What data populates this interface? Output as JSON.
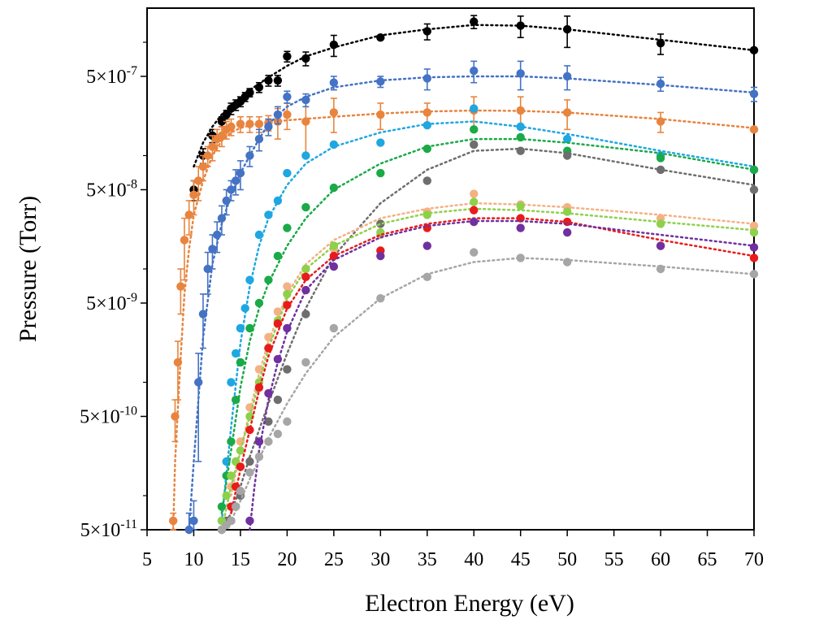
{
  "chart_data": {
    "type": "scatter",
    "title": "",
    "xlabel": "Electron Energy (eV)",
    "ylabel": "Pressure (Torr)",
    "xlim": [
      5,
      70
    ],
    "ylim": [
      5e-11,
      2e-06
    ],
    "yscale": "log",
    "grid": false,
    "legend": "none",
    "x_ticks": [
      5,
      10,
      15,
      20,
      25,
      30,
      35,
      40,
      45,
      50,
      55,
      60,
      65,
      70
    ],
    "y_ticks": [
      {
        "value": 5e-11,
        "label": "5×10",
        "exp": "-11"
      },
      {
        "value": 5e-10,
        "label": "5×10",
        "exp": "-10"
      },
      {
        "value": 5e-09,
        "label": "5×10",
        "exp": "-9"
      },
      {
        "value": 5e-08,
        "label": "5×10",
        "exp": "-8"
      },
      {
        "value": 5e-07,
        "label": "5×10",
        "exp": "-7"
      }
    ],
    "series": [
      {
        "color": "#000000",
        "x": [
          10,
          11,
          12,
          13,
          13.5,
          14,
          14.5,
          15,
          15.5,
          16,
          17,
          18,
          19,
          20,
          22,
          25,
          30,
          35,
          40,
          45,
          50,
          60,
          70
        ],
        "y": [
          5e-08,
          1e-07,
          1.5e-07,
          2e-07,
          2.3e-07,
          2.6e-07,
          2.8e-07,
          3e-07,
          3.3e-07,
          3.6e-07,
          4e-07,
          4.6e-07,
          4.6e-07,
          7.5e-07,
          7.2e-07,
          9.5e-07,
          1.1e-06,
          1.25e-06,
          1.52e-06,
          1.4e-06,
          1.3e-06,
          9.8e-07,
          8.5e-07
        ],
        "err": [
          1e-08,
          1.5e-08,
          2e-08,
          2e-08,
          2e-08,
          3e-08,
          3e-08,
          3e-08,
          3e-08,
          3e-08,
          4e-08,
          5e-08,
          5e-08,
          8e-08,
          1e-07,
          2e-07,
          0,
          2e-07,
          2e-07,
          3e-07,
          4e-07,
          2e-07,
          0
        ],
        "fit_x": [
          10,
          11,
          12,
          13,
          14,
          15,
          16,
          17,
          18,
          19,
          20,
          22,
          25,
          30,
          35,
          40,
          45,
          50,
          60,
          70
        ],
        "fit_y": [
          8e-08,
          1.3e-07,
          1.8e-07,
          2.3e-07,
          2.8e-07,
          3.3e-07,
          3.8e-07,
          4.3e-07,
          4.9e-07,
          5.5e-07,
          6.2e-07,
          7.5e-07,
          9e-07,
          1.15e-06,
          1.3e-06,
          1.42e-06,
          1.4e-06,
          1.3e-06,
          1.05e-06,
          8.5e-07
        ]
      },
      {
        "color": "#e8843e",
        "x": [
          7.8,
          8,
          8.3,
          8.6,
          9,
          9.5,
          10,
          10.5,
          11,
          11.5,
          12,
          12.5,
          13,
          13.5,
          14,
          15,
          16,
          17,
          18,
          19,
          20,
          22,
          25,
          30,
          35,
          40,
          45,
          50,
          60,
          70
        ],
        "y": [
          6e-11,
          5e-10,
          1.5e-09,
          7e-09,
          1.8e-08,
          3e-08,
          4.5e-08,
          6e-08,
          8e-08,
          1e-07,
          1.2e-07,
          1.4e-07,
          1.5e-07,
          1.7e-07,
          1.8e-07,
          1.9e-07,
          1.9e-07,
          1.9e-07,
          1.95e-07,
          2e-07,
          2.3e-07,
          2e-07,
          2.4e-07,
          2.3e-07,
          2.4e-07,
          2.5e-07,
          2.5e-07,
          2.4e-07,
          2e-07,
          1.7e-07
        ],
        "err": [
          1e-11,
          2e-10,
          8e-10,
          3e-09,
          1e-08,
          1e-08,
          1.5e-08,
          2e-08,
          2e-08,
          2e-08,
          3e-08,
          3e-08,
          3e-08,
          3e-08,
          3e-08,
          3e-08,
          3e-08,
          3e-08,
          3e-08,
          6e-08,
          6e-08,
          1e-07,
          8e-08,
          6e-08,
          5e-08,
          8e-08,
          8e-08,
          7e-08,
          4e-08,
          0
        ],
        "fit_x": [
          7.8,
          8,
          8.5,
          9,
          9.5,
          10,
          11,
          12,
          13,
          14,
          15,
          16,
          18,
          20,
          25,
          30,
          35,
          40,
          45,
          50,
          60,
          70
        ],
        "fit_y": [
          5e-11,
          2e-10,
          1.2e-09,
          6e-09,
          1.5e-08,
          3e-08,
          6e-08,
          1e-07,
          1.35e-07,
          1.6e-07,
          1.75e-07,
          1.85e-07,
          1.95e-07,
          2.05e-07,
          2.2e-07,
          2.35e-07,
          2.45e-07,
          2.5e-07,
          2.48e-07,
          2.4e-07,
          2.1e-07,
          1.75e-07
        ]
      },
      {
        "color": "#4472c4",
        "x": [
          9.5,
          10,
          10.5,
          11,
          11.5,
          12,
          12.5,
          13,
          13.5,
          14,
          14.5,
          15,
          16,
          17,
          18,
          19,
          20,
          22,
          25,
          30,
          35,
          40,
          45,
          50,
          60,
          70
        ],
        "y": [
          5e-11,
          6e-11,
          1e-09,
          4e-09,
          1e-08,
          1.5e-08,
          2e-08,
          2.8e-08,
          4e-08,
          5e-08,
          6e-08,
          7e-08,
          1e-07,
          1.4e-07,
          1.8e-07,
          2.3e-07,
          3.3e-07,
          3.1e-07,
          4.4e-07,
          4.5e-07,
          4.8e-07,
          5.6e-07,
          5.3e-07,
          5e-07,
          4.3e-07,
          3.5e-07
        ],
        "err": [
          2e-11,
          3e-11,
          8e-10,
          2e-09,
          4e-09,
          5e-09,
          6e-09,
          8e-09,
          1e-08,
          1e-08,
          1.5e-08,
          2e-08,
          2e-08,
          3e-08,
          3e-08,
          4e-08,
          4e-08,
          4e-08,
          6e-08,
          5e-08,
          1e-07,
          1.2e-07,
          1.5e-07,
          1.2e-07,
          6e-08,
          5e-08
        ],
        "fit_x": [
          9.5,
          10,
          11,
          12,
          13,
          14,
          15,
          16,
          17,
          18,
          20,
          22,
          25,
          30,
          35,
          40,
          45,
          50,
          60,
          70
        ],
        "fit_y": [
          5e-11,
          2e-10,
          2.5e-09,
          1.1e-08,
          2.5e-08,
          4.5e-08,
          7e-08,
          1e-07,
          1.4e-07,
          1.9e-07,
          2.7e-07,
          3.3e-07,
          4e-07,
          4.6e-07,
          4.9e-07,
          5e-07,
          5e-07,
          4.8e-07,
          4.2e-07,
          3.6e-07
        ]
      },
      {
        "color": "#1ea7e1",
        "x": [
          13,
          13.5,
          14,
          14.5,
          15,
          15.5,
          16,
          17,
          18,
          19,
          20,
          22,
          25,
          30,
          35,
          40,
          45,
          50,
          60,
          70
        ],
        "y": [
          6e-11,
          2e-10,
          1e-09,
          1.8e-09,
          3e-09,
          4.5e-09,
          8e-09,
          2e-08,
          3e-08,
          4e-08,
          7e-08,
          1e-07,
          1.25e-07,
          1.3e-07,
          1.85e-07,
          2.6e-07,
          1.8e-07,
          1.4e-07,
          1e-07,
          7.5e-08
        ],
        "err": [
          0,
          0,
          0,
          0,
          0,
          0,
          0,
          0,
          0,
          0,
          0,
          0,
          0,
          0,
          0,
          0,
          0,
          0,
          0,
          0
        ],
        "fit_x": [
          13,
          14,
          15,
          16,
          17,
          18,
          20,
          22,
          25,
          30,
          35,
          40,
          45,
          50,
          60,
          70
        ],
        "fit_y": [
          6e-11,
          4e-10,
          2.2e-09,
          7e-09,
          1.6e-08,
          2.8e-08,
          5.5e-08,
          8.5e-08,
          1.2e-07,
          1.6e-07,
          1.9e-07,
          2e-07,
          1.8e-07,
          1.55e-07,
          1.1e-07,
          8e-08
        ]
      },
      {
        "color": "#1aaa47",
        "x": [
          13,
          13.5,
          14,
          14.5,
          15,
          16,
          17,
          18,
          19,
          20,
          22,
          25,
          30,
          35,
          40,
          45,
          50,
          60,
          70
        ],
        "y": [
          8e-11,
          1.5e-10,
          3e-10,
          7e-10,
          1.5e-09,
          3e-09,
          5e-09,
          8e-09,
          1.3e-08,
          2.3e-08,
          3.5e-08,
          5.2e-08,
          7e-08,
          1.15e-07,
          1.7e-07,
          1.45e-07,
          1.1e-07,
          9.5e-08,
          7.5e-08
        ],
        "err": [
          0,
          0,
          0,
          0,
          0,
          0,
          0,
          0,
          0,
          0,
          0,
          0,
          0,
          0,
          0,
          0,
          0,
          0,
          0
        ],
        "fit_x": [
          13,
          14,
          15,
          16,
          17,
          18,
          20,
          22,
          25,
          30,
          35,
          40,
          45,
          50,
          60,
          70
        ],
        "fit_y": [
          7e-11,
          2.5e-10,
          9e-10,
          2.3e-09,
          4.5e-09,
          7.5e-09,
          1.6e-08,
          2.8e-08,
          5e-08,
          8.5e-08,
          1.2e-07,
          1.4e-07,
          1.4e-07,
          1.3e-07,
          1.05e-07,
          7.5e-08
        ]
      },
      {
        "color": "#6e6e6e",
        "x": [
          13,
          13.5,
          14,
          14.5,
          15,
          16,
          17,
          18,
          19,
          20,
          22,
          25,
          30,
          35,
          40,
          45,
          50,
          60,
          70
        ],
        "y": [
          5e-11,
          6e-11,
          6e-11,
          8e-11,
          1e-10,
          2e-10,
          3e-10,
          4.5e-10,
          7e-10,
          1.3e-09,
          4e-09,
          1.6e-08,
          2.5e-08,
          6e-08,
          1.25e-07,
          1.1e-07,
          1e-07,
          7.5e-08,
          5e-08
        ],
        "err": [
          0,
          0,
          0,
          0,
          0,
          0,
          0,
          0,
          0,
          0,
          0,
          0,
          0,
          0,
          0,
          0,
          0,
          0,
          0
        ],
        "fit_x": [
          13,
          14,
          15,
          16,
          17,
          18,
          20,
          22,
          25,
          30,
          35,
          40,
          45,
          50,
          60,
          70
        ],
        "fit_y": [
          4e-11,
          7e-11,
          1.2e-10,
          2.2e-10,
          3.8e-10,
          6.5e-10,
          1.8e-09,
          4.5e-09,
          1.3e-08,
          3.8e-08,
          7.5e-08,
          1.1e-07,
          1.15e-07,
          1.05e-07,
          7.5e-08,
          5.5e-08
        ]
      },
      {
        "color": "#f5b183",
        "x": [
          14,
          14.5,
          15,
          16,
          17,
          18,
          19,
          20,
          22,
          25,
          30,
          35,
          40,
          45,
          50,
          60,
          70
        ],
        "y": [
          1.2e-10,
          2e-10,
          3e-10,
          6e-10,
          1.3e-09,
          2.5e-09,
          4.2e-09,
          7e-09,
          1e-08,
          1.5e-08,
          2e-08,
          3.2e-08,
          4.6e-08,
          3.7e-08,
          3.5e-08,
          2.8e-08,
          2.4e-08
        ],
        "err": [
          0,
          0,
          0,
          0,
          0,
          0,
          0,
          0,
          0,
          0,
          0,
          0,
          0,
          0,
          0,
          0,
          0
        ],
        "fit_x": [
          14,
          15,
          16,
          17,
          18,
          20,
          22,
          25,
          30,
          35,
          40,
          45,
          50,
          60,
          70
        ],
        "fit_y": [
          1e-10,
          2.5e-10,
          5.5e-10,
          1.2e-09,
          2.3e-09,
          6e-09,
          1.1e-08,
          1.8e-08,
          2.8e-08,
          3.4e-08,
          3.8e-08,
          3.7e-08,
          3.5e-08,
          3e-08,
          2.5e-08
        ]
      },
      {
        "color": "#8dd14a",
        "x": [
          13,
          13.5,
          14,
          14.5,
          15,
          16,
          17,
          18,
          19,
          20,
          22,
          25,
          30,
          35,
          40,
          45,
          50,
          60,
          70
        ],
        "y": [
          6e-11,
          1e-10,
          1.5e-10,
          2e-10,
          2.5e-10,
          5e-10,
          1e-09,
          2e-09,
          3.5e-09,
          6e-09,
          1e-08,
          1.6e-08,
          2.1e-08,
          3e-08,
          3.9e-08,
          3.6e-08,
          3.2e-08,
          2.5e-08,
          2.1e-08
        ],
        "err": [
          0,
          0,
          0,
          0,
          0,
          0,
          0,
          0,
          0,
          0,
          0,
          0,
          0,
          0,
          0,
          0,
          0,
          0,
          0
        ],
        "fit_x": [
          13,
          14,
          15,
          16,
          17,
          18,
          20,
          22,
          25,
          30,
          35,
          40,
          45,
          50,
          60,
          70
        ],
        "fit_y": [
          5e-11,
          1.2e-10,
          2.5e-10,
          5e-10,
          1e-09,
          2e-09,
          5.5e-09,
          1e-08,
          1.6e-08,
          2.5e-08,
          3.1e-08,
          3.4e-08,
          3.3e-08,
          3.1e-08,
          2.6e-08,
          2.2e-08
        ]
      },
      {
        "color": "#e81b1b",
        "x": [
          14,
          14.5,
          15,
          16,
          17,
          18,
          19,
          20,
          22,
          25,
          30,
          35,
          40,
          45,
          50,
          60,
          70
        ],
        "y": [
          8e-11,
          1.2e-10,
          1.8e-10,
          3.8e-10,
          9e-10,
          2e-09,
          3.3e-09,
          4.8e-09,
          8.5e-09,
          1.3e-08,
          1.45e-08,
          2.3e-08,
          3.3e-08,
          2.8e-08,
          2.6e-08,
          1.6e-08,
          1.25e-08
        ],
        "err": [
          0,
          0,
          0,
          0,
          0,
          0,
          0,
          0,
          0,
          0,
          0,
          0,
          0,
          0,
          0,
          0,
          0
        ],
        "fit_x": [
          14,
          15,
          16,
          17,
          18,
          20,
          22,
          25,
          30,
          35,
          40,
          45,
          50,
          60,
          70
        ],
        "fit_y": [
          7e-11,
          1.7e-10,
          3.8e-10,
          8.5e-10,
          1.7e-09,
          4.5e-09,
          8e-09,
          1.3e-08,
          2e-08,
          2.5e-08,
          2.8e-08,
          2.8e-08,
          2.6e-08,
          1.8e-08,
          1.3e-08
        ]
      },
      {
        "color": "#7030a0",
        "x": [
          16,
          17,
          18,
          19,
          20,
          22,
          25,
          30,
          35,
          40,
          45,
          50,
          60,
          70
        ],
        "y": [
          6e-11,
          3e-10,
          8e-10,
          1.6e-09,
          3e-09,
          6.5e-09,
          1.05e-08,
          1.3e-08,
          1.6e-08,
          2.6e-08,
          2.3e-08,
          2.1e-08,
          1.6e-08,
          1.55e-08
        ],
        "err": [
          0,
          0,
          0,
          0,
          0,
          0,
          0,
          0,
          0,
          0,
          0,
          0,
          0,
          0
        ],
        "fit_x": [
          16,
          16.5,
          17,
          18,
          19,
          20,
          22,
          25,
          30,
          35,
          40,
          45,
          50,
          60,
          70
        ],
        "fit_y": [
          5e-11,
          1.2e-10,
          2.5e-10,
          7e-10,
          1.5e-09,
          2.8e-09,
          6.5e-09,
          1.2e-08,
          1.9e-08,
          2.4e-08,
          2.65e-08,
          2.65e-08,
          2.5e-08,
          2e-08,
          1.6e-08
        ]
      },
      {
        "color": "#a6a6a6",
        "x": [
          13,
          13.5,
          14,
          14.5,
          15,
          16,
          17,
          18,
          19,
          20,
          22,
          25,
          30,
          35,
          40,
          45,
          50,
          60,
          70
        ],
        "y": [
          5e-11,
          5.5e-11,
          6e-11,
          8e-11,
          1.1e-10,
          1.6e-10,
          2.2e-10,
          3e-10,
          3.5e-10,
          4.5e-10,
          1.5e-09,
          3e-09,
          5.5e-09,
          8.5e-09,
          1.4e-08,
          1.25e-08,
          1.15e-08,
          1e-08,
          9e-09
        ],
        "err": [
          0,
          0,
          0,
          0,
          0,
          0,
          0,
          0,
          0,
          0,
          0,
          0,
          0,
          0,
          0,
          0,
          0,
          0,
          0
        ],
        "fit_x": [
          13,
          14,
          15,
          16,
          17,
          18,
          20,
          22,
          25,
          30,
          35,
          40,
          45,
          50,
          60,
          70
        ],
        "fit_y": [
          4e-11,
          6e-11,
          9e-11,
          1.4e-10,
          2.1e-10,
          3.2e-10,
          6.5e-10,
          1.2e-09,
          2.5e-09,
          5.5e-09,
          9e-09,
          1.15e-08,
          1.25e-08,
          1.2e-08,
          1.05e-08,
          9e-09
        ]
      }
    ]
  }
}
